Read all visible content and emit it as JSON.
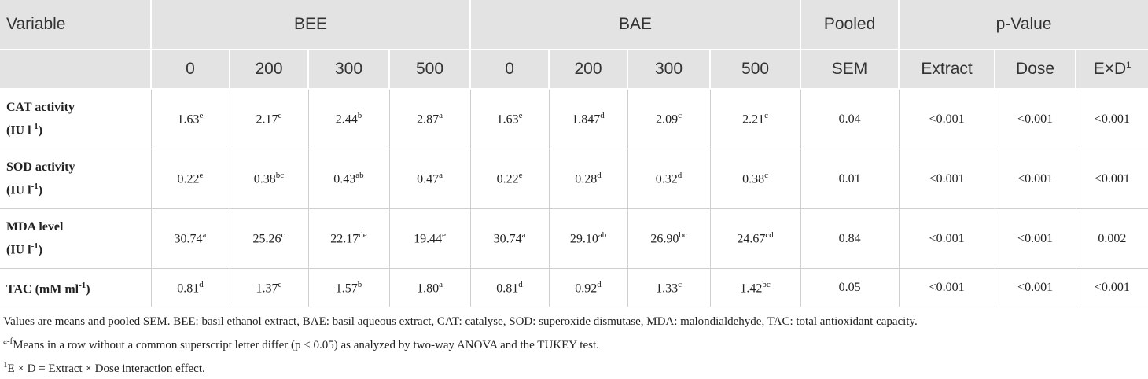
{
  "table": {
    "header": {
      "variable": "Variable",
      "groups": [
        "BEE",
        "BAE"
      ],
      "pooled": "Pooled",
      "pvalue": "p-Value",
      "sub": [
        {
          "text": "0"
        },
        {
          "text": "200"
        },
        {
          "text": "300"
        },
        {
          "text": "500"
        },
        {
          "text": "0"
        },
        {
          "text": "200"
        },
        {
          "text": "300"
        },
        {
          "text": "500"
        },
        {
          "text": "SEM"
        },
        {
          "text": "Extract"
        },
        {
          "text": "Dose"
        },
        {
          "text": "E×D",
          "sup": "1"
        }
      ]
    },
    "rows": [
      {
        "label": {
          "text": "CAT activity"
        },
        "unit": {
          "text": "(IU l",
          "sup": "-1",
          "tail": ")"
        },
        "cells": [
          {
            "text": "1.63",
            "sup": "e"
          },
          {
            "text": "2.17",
            "sup": "c"
          },
          {
            "text": "2.44",
            "sup": "b"
          },
          {
            "text": "2.87",
            "sup": "a"
          },
          {
            "text": "1.63",
            "sup": "e"
          },
          {
            "text": "1.847",
            "sup": "d"
          },
          {
            "text": "2.09",
            "sup": "c"
          },
          {
            "text": "2.21",
            "sup": "c"
          },
          {
            "text": "0.04"
          },
          {
            "text": "<0.001"
          },
          {
            "text": "<0.001"
          },
          {
            "text": "<0.001"
          }
        ]
      },
      {
        "label": {
          "text": "SOD activity"
        },
        "unit": {
          "text": "(IU l",
          "sup": "-1",
          "tail": ")"
        },
        "cells": [
          {
            "text": "0.22",
            "sup": "e"
          },
          {
            "text": "0.38",
            "sup": "bc"
          },
          {
            "text": "0.43",
            "sup": "ab"
          },
          {
            "text": "0.47",
            "sup": "a"
          },
          {
            "text": "0.22",
            "sup": "e"
          },
          {
            "text": "0.28",
            "sup": "d"
          },
          {
            "text": "0.32",
            "sup": "d"
          },
          {
            "text": "0.38",
            "sup": "c"
          },
          {
            "text": "0.01"
          },
          {
            "text": "<0.001"
          },
          {
            "text": "<0.001"
          },
          {
            "text": "<0.001"
          }
        ]
      },
      {
        "label": {
          "text": "MDA level"
        },
        "unit": {
          "text": "(IU l",
          "sup": "-1",
          "tail": ")"
        },
        "cells": [
          {
            "text": "30.74",
            "sup": "a"
          },
          {
            "text": "25.26",
            "sup": "c"
          },
          {
            "text": "22.17",
            "sup": "de"
          },
          {
            "text": "19.44",
            "sup": "e"
          },
          {
            "text": "30.74",
            "sup": "a"
          },
          {
            "text": "29.10",
            "sup": "ab"
          },
          {
            "text": "26.90",
            "sup": "bc"
          },
          {
            "text": "24.67",
            "sup": "cd"
          },
          {
            "text": "0.84"
          },
          {
            "text": "<0.001"
          },
          {
            "text": "<0.001"
          },
          {
            "text": "0.002"
          }
        ]
      },
      {
        "label": {
          "text": "TAC (mM ml",
          "sup": "-1",
          "tail": ")"
        },
        "cells": [
          {
            "text": "0.81",
            "sup": "d"
          },
          {
            "text": "1.37",
            "sup": "c"
          },
          {
            "text": "1.57",
            "sup": "b"
          },
          {
            "text": "1.80",
            "sup": "a"
          },
          {
            "text": "0.81",
            "sup": "d"
          },
          {
            "text": "0.92",
            "sup": "d"
          },
          {
            "text": "1.33",
            "sup": "c"
          },
          {
            "text": "1.42",
            "sup": "bc"
          },
          {
            "text": "0.05"
          },
          {
            "text": "<0.001"
          },
          {
            "text": "<0.001"
          },
          {
            "text": "<0.001"
          }
        ]
      }
    ],
    "notes": [
      {
        "text": "Values are means and pooled SEM. BEE: basil ethanol extract, BAE: basil aqueous extract, CAT: catalyse, SOD: superoxide dismutase, MDA: malondialdehyde, TAC: total antioxidant capacity."
      },
      {
        "sup": "a-f",
        "text": "Means in a row without a common superscript letter differ (p < 0.05) as analyzed by two-way ANOVA and the TUKEY test."
      },
      {
        "sup": "1",
        "text": "E × D = Extract × Dose interaction effect."
      }
    ]
  }
}
